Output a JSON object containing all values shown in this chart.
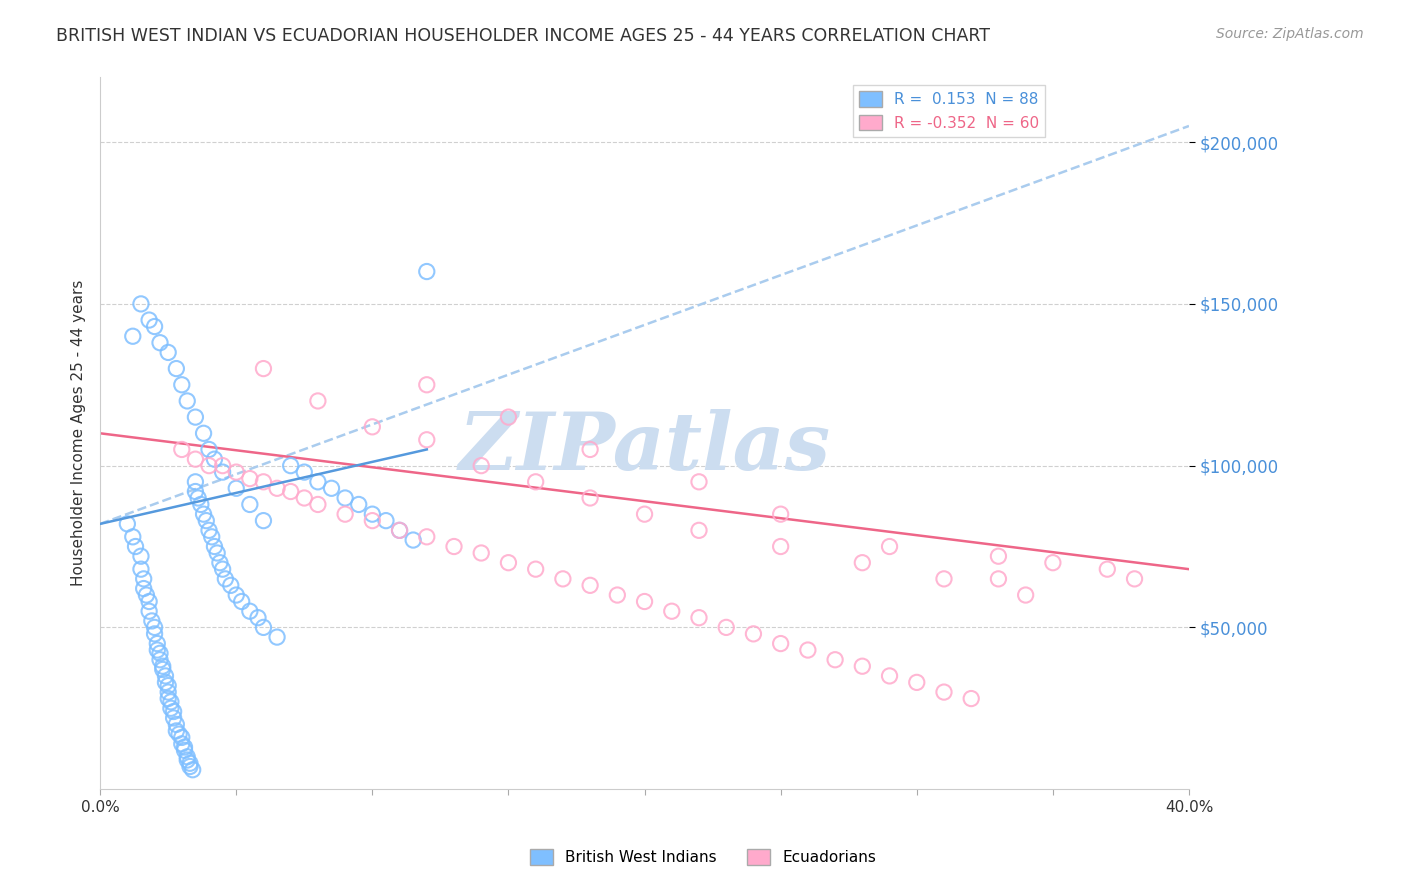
{
  "title": "BRITISH WEST INDIAN VS ECUADORIAN HOUSEHOLDER INCOME AGES 25 - 44 YEARS CORRELATION CHART",
  "source": "Source: ZipAtlas.com",
  "ylabel": "Householder Income Ages 25 - 44 years",
  "ytick_labels": [
    "$50,000",
    "$100,000",
    "$150,000",
    "$200,000"
  ],
  "ytick_values": [
    50000,
    100000,
    150000,
    200000
  ],
  "xlim": [
    0.0,
    0.4
  ],
  "ylim": [
    0,
    220000
  ],
  "watermark": "ZIPatlas",
  "blue_scatter_x": [
    0.01,
    0.012,
    0.013,
    0.015,
    0.015,
    0.016,
    0.016,
    0.017,
    0.018,
    0.018,
    0.019,
    0.02,
    0.02,
    0.021,
    0.021,
    0.022,
    0.022,
    0.023,
    0.023,
    0.024,
    0.024,
    0.025,
    0.025,
    0.025,
    0.026,
    0.026,
    0.027,
    0.027,
    0.028,
    0.028,
    0.029,
    0.03,
    0.03,
    0.031,
    0.031,
    0.032,
    0.032,
    0.033,
    0.033,
    0.034,
    0.035,
    0.035,
    0.036,
    0.037,
    0.038,
    0.039,
    0.04,
    0.041,
    0.042,
    0.043,
    0.044,
    0.045,
    0.046,
    0.048,
    0.05,
    0.052,
    0.055,
    0.058,
    0.06,
    0.065,
    0.07,
    0.075,
    0.08,
    0.085,
    0.09,
    0.095,
    0.1,
    0.105,
    0.11,
    0.115,
    0.012,
    0.015,
    0.018,
    0.02,
    0.022,
    0.025,
    0.028,
    0.03,
    0.032,
    0.035,
    0.038,
    0.04,
    0.042,
    0.045,
    0.05,
    0.055,
    0.06,
    0.12
  ],
  "blue_scatter_y": [
    82000,
    78000,
    75000,
    72000,
    68000,
    65000,
    62000,
    60000,
    58000,
    55000,
    52000,
    50000,
    48000,
    45000,
    43000,
    42000,
    40000,
    38000,
    37000,
    35000,
    33000,
    32000,
    30000,
    28000,
    27000,
    25000,
    24000,
    22000,
    20000,
    18000,
    17000,
    16000,
    14000,
    13000,
    12000,
    10000,
    9000,
    8000,
    7000,
    6000,
    95000,
    92000,
    90000,
    88000,
    85000,
    83000,
    80000,
    78000,
    75000,
    73000,
    70000,
    68000,
    65000,
    63000,
    60000,
    58000,
    55000,
    53000,
    50000,
    47000,
    100000,
    98000,
    95000,
    93000,
    90000,
    88000,
    85000,
    83000,
    80000,
    77000,
    140000,
    150000,
    145000,
    143000,
    138000,
    135000,
    130000,
    125000,
    120000,
    115000,
    110000,
    105000,
    102000,
    98000,
    93000,
    88000,
    83000,
    160000
  ],
  "pink_scatter_x": [
    0.03,
    0.035,
    0.04,
    0.045,
    0.05,
    0.055,
    0.06,
    0.065,
    0.07,
    0.075,
    0.08,
    0.09,
    0.1,
    0.11,
    0.12,
    0.13,
    0.14,
    0.15,
    0.16,
    0.17,
    0.18,
    0.19,
    0.2,
    0.21,
    0.22,
    0.23,
    0.24,
    0.25,
    0.26,
    0.27,
    0.28,
    0.29,
    0.3,
    0.31,
    0.32,
    0.33,
    0.35,
    0.37,
    0.38,
    0.06,
    0.08,
    0.1,
    0.12,
    0.14,
    0.16,
    0.18,
    0.2,
    0.22,
    0.25,
    0.28,
    0.31,
    0.34,
    0.12,
    0.15,
    0.18,
    0.22,
    0.25,
    0.29,
    0.33
  ],
  "pink_scatter_y": [
    105000,
    102000,
    100000,
    100000,
    98000,
    96000,
    95000,
    93000,
    92000,
    90000,
    88000,
    85000,
    83000,
    80000,
    78000,
    75000,
    73000,
    70000,
    68000,
    65000,
    63000,
    60000,
    58000,
    55000,
    53000,
    50000,
    48000,
    45000,
    43000,
    40000,
    38000,
    35000,
    33000,
    30000,
    28000,
    72000,
    70000,
    68000,
    65000,
    130000,
    120000,
    112000,
    108000,
    100000,
    95000,
    90000,
    85000,
    80000,
    75000,
    70000,
    65000,
    60000,
    125000,
    115000,
    105000,
    95000,
    85000,
    75000,
    65000
  ],
  "blue_line_x": [
    0.0,
    0.4
  ],
  "blue_line_y": [
    82000,
    205000
  ],
  "pink_line_x": [
    0.0,
    0.4
  ],
  "pink_line_y": [
    110000,
    68000
  ],
  "title_color": "#333333",
  "source_color": "#999999",
  "blue_color": "#7fbfff",
  "pink_color": "#ffaacc",
  "blue_line_color": "#5599dd",
  "pink_line_color": "#ee6688",
  "ytick_color": "#4a90d9",
  "grid_color": "#d0d0d0",
  "watermark_color": "#ccddf0"
}
